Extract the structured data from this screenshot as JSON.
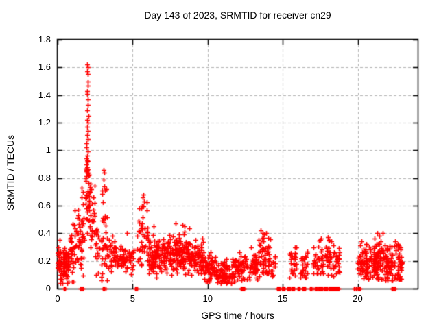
{
  "title": "Day 143 of 2023, SRMTID for receiver cn29",
  "chart_data": {
    "type": "scatter",
    "title": "Day 143 of 2023, SRMTID for receiver cn29",
    "xlabel": "GPS time / hours",
    "ylabel": "SRMTID / TECUs",
    "xlim": [
      0,
      24
    ],
    "ylim": [
      0,
      1.8
    ],
    "xticks": [
      {
        "v": 0,
        "label": "0"
      },
      {
        "v": 5,
        "label": "5"
      },
      {
        "v": 10,
        "label": "10"
      },
      {
        "v": 15,
        "label": "15"
      },
      {
        "v": 20,
        "label": "20"
      }
    ],
    "yticks": [
      {
        "v": 0.0,
        "label": "0"
      },
      {
        "v": 0.2,
        "label": "0.2"
      },
      {
        "v": 0.4,
        "label": "0.4"
      },
      {
        "v": 0.6,
        "label": "0.6"
      },
      {
        "v": 0.8,
        "label": "0.8"
      },
      {
        "v": 1.0,
        "label": "1"
      },
      {
        "v": 1.2,
        "label": "1.2"
      },
      {
        "v": 1.4,
        "label": "1.4"
      },
      {
        "v": 1.6,
        "label": "1.6"
      },
      {
        "v": 1.8,
        "label": "1.8"
      }
    ],
    "grid": true,
    "legend": "none",
    "marker": "plus",
    "marker_color": "#ff0000",
    "grid_color": "#b4b4b4",
    "axis_color": "#000000",
    "background": "#ffffff",
    "seed": 1430229,
    "peak_points": [
      [
        1.98,
        1.62
      ],
      [
        2.0,
        1.6
      ],
      [
        1.97,
        1.57
      ],
      [
        2.01,
        1.55
      ],
      [
        1.99,
        1.5
      ],
      [
        2.02,
        1.47
      ],
      [
        1.98,
        1.43
      ],
      [
        1.97,
        1.41
      ],
      [
        2.0,
        1.37
      ],
      [
        2.03,
        1.33
      ],
      [
        1.95,
        1.29
      ],
      [
        2.04,
        1.25
      ],
      [
        1.96,
        1.22
      ],
      [
        2.0,
        1.2
      ],
      [
        1.98,
        1.17
      ],
      [
        2.02,
        1.14
      ],
      [
        1.97,
        1.11
      ],
      [
        2.0,
        1.08
      ],
      [
        1.94,
        1.05
      ],
      [
        1.92,
        1.02
      ],
      [
        2.0,
        0.99
      ],
      [
        1.96,
        0.96
      ],
      [
        1.9,
        0.94
      ],
      [
        2.03,
        0.92
      ],
      [
        1.93,
        0.9
      ],
      [
        1.98,
        0.88
      ],
      [
        1.9,
        0.86
      ],
      [
        1.95,
        0.84
      ],
      [
        2.05,
        0.82
      ],
      [
        1.88,
        0.8
      ],
      [
        3.04,
        0.86
      ],
      [
        3.1,
        0.84
      ],
      [
        3.07,
        0.79
      ],
      [
        3.12,
        0.74
      ],
      [
        3.15,
        0.71
      ],
      [
        1.62,
        0.73
      ],
      [
        1.68,
        0.7
      ],
      [
        1.58,
        0.66
      ],
      [
        2.2,
        0.76
      ],
      [
        2.25,
        0.72
      ],
      [
        2.15,
        0.7
      ],
      [
        5.7,
        0.68
      ],
      [
        5.66,
        0.66
      ],
      [
        5.74,
        0.63
      ],
      [
        5.62,
        0.6
      ],
      [
        0.15,
        0.35
      ],
      [
        4.6,
        0.4
      ],
      [
        6.4,
        0.45
      ],
      [
        7.85,
        0.47
      ],
      [
        8.3,
        0.46
      ],
      [
        8.45,
        0.45
      ],
      [
        13.55,
        0.42
      ],
      [
        13.65,
        0.4
      ],
      [
        17.5,
        0.35
      ],
      [
        18.0,
        0.37
      ],
      [
        21.3,
        0.4
      ],
      [
        21.45,
        0.38
      ],
      [
        22.5,
        0.34
      ]
    ],
    "zero_run_fields": [
      "x_start",
      "x_end",
      "count"
    ],
    "zero_runs": [
      [
        0.42,
        0.52,
        3
      ],
      [
        1.52,
        1.68,
        4
      ],
      [
        3.02,
        3.18,
        4
      ],
      [
        5.15,
        5.3,
        3
      ],
      [
        12.2,
        12.45,
        9
      ],
      [
        14.62,
        14.82,
        7
      ],
      [
        14.95,
        15.12,
        5
      ],
      [
        15.3,
        15.5,
        5
      ],
      [
        15.58,
        15.78,
        5
      ],
      [
        16.0,
        16.15,
        4
      ],
      [
        16.3,
        16.5,
        5
      ],
      [
        16.8,
        17.0,
        4
      ],
      [
        17.15,
        17.3,
        4
      ],
      [
        17.35,
        18.25,
        18
      ],
      [
        18.3,
        18.55,
        7
      ],
      [
        18.6,
        18.75,
        4
      ],
      [
        19.75,
        19.95,
        4
      ],
      [
        20.0,
        20.18,
        4
      ],
      [
        22.25,
        22.5,
        5
      ]
    ],
    "cluster_fields": [
      "x_start",
      "x_end",
      "count",
      "y_center",
      "y_spread",
      "y_min",
      "y_max"
    ],
    "clusters": [
      [
        0.0,
        0.75,
        95,
        0.17,
        0.07,
        0.04,
        0.36
      ],
      [
        0.8,
        1.15,
        28,
        0.26,
        0.1,
        0.05,
        0.5
      ],
      [
        1.1,
        1.5,
        24,
        0.38,
        0.09,
        0.18,
        0.62
      ],
      [
        1.5,
        1.8,
        26,
        0.35,
        0.14,
        0.06,
        0.73
      ],
      [
        1.85,
        2.15,
        40,
        0.7,
        0.16,
        0.38,
        1.05
      ],
      [
        2.15,
        2.5,
        24,
        0.55,
        0.12,
        0.3,
        0.78
      ],
      [
        2.5,
        2.8,
        18,
        0.3,
        0.1,
        0.1,
        0.52
      ],
      [
        2.9,
        3.3,
        34,
        0.33,
        0.17,
        0.06,
        0.82
      ],
      [
        3.3,
        3.75,
        22,
        0.25,
        0.08,
        0.1,
        0.45
      ],
      [
        3.75,
        5.1,
        75,
        0.22,
        0.06,
        0.08,
        0.4
      ],
      [
        5.3,
        6.05,
        45,
        0.35,
        0.12,
        0.14,
        0.66
      ],
      [
        6.05,
        7.0,
        85,
        0.23,
        0.07,
        0.08,
        0.45
      ],
      [
        7.0,
        8.0,
        95,
        0.25,
        0.07,
        0.1,
        0.47
      ],
      [
        8.0,
        9.0,
        95,
        0.25,
        0.07,
        0.1,
        0.48
      ],
      [
        9.0,
        9.8,
        65,
        0.21,
        0.06,
        0.08,
        0.38
      ],
      [
        9.8,
        10.6,
        60,
        0.14,
        0.05,
        0.05,
        0.28
      ],
      [
        10.6,
        11.6,
        70,
        0.11,
        0.04,
        0.04,
        0.24
      ],
      [
        11.6,
        12.3,
        50,
        0.15,
        0.05,
        0.05,
        0.3
      ],
      [
        12.3,
        13.35,
        65,
        0.16,
        0.05,
        0.05,
        0.32
      ],
      [
        13.35,
        14.25,
        60,
        0.24,
        0.08,
        0.09,
        0.42
      ],
      [
        14.25,
        14.55,
        10,
        0.16,
        0.05,
        0.09,
        0.25
      ],
      [
        15.45,
        15.95,
        26,
        0.17,
        0.06,
        0.08,
        0.3
      ],
      [
        16.15,
        16.65,
        26,
        0.18,
        0.06,
        0.08,
        0.33
      ],
      [
        17.0,
        17.7,
        38,
        0.22,
        0.07,
        0.11,
        0.36
      ],
      [
        17.8,
        18.25,
        30,
        0.22,
        0.08,
        0.1,
        0.37
      ],
      [
        18.3,
        18.8,
        26,
        0.18,
        0.06,
        0.09,
        0.31
      ],
      [
        19.95,
        20.3,
        20,
        0.2,
        0.07,
        0.09,
        0.34
      ],
      [
        20.3,
        21.15,
        75,
        0.18,
        0.07,
        0.07,
        0.36
      ],
      [
        21.15,
        21.75,
        65,
        0.2,
        0.08,
        0.07,
        0.4
      ],
      [
        21.75,
        22.35,
        55,
        0.17,
        0.06,
        0.06,
        0.33
      ],
      [
        22.35,
        22.95,
        48,
        0.18,
        0.07,
        0.07,
        0.35
      ]
    ]
  }
}
